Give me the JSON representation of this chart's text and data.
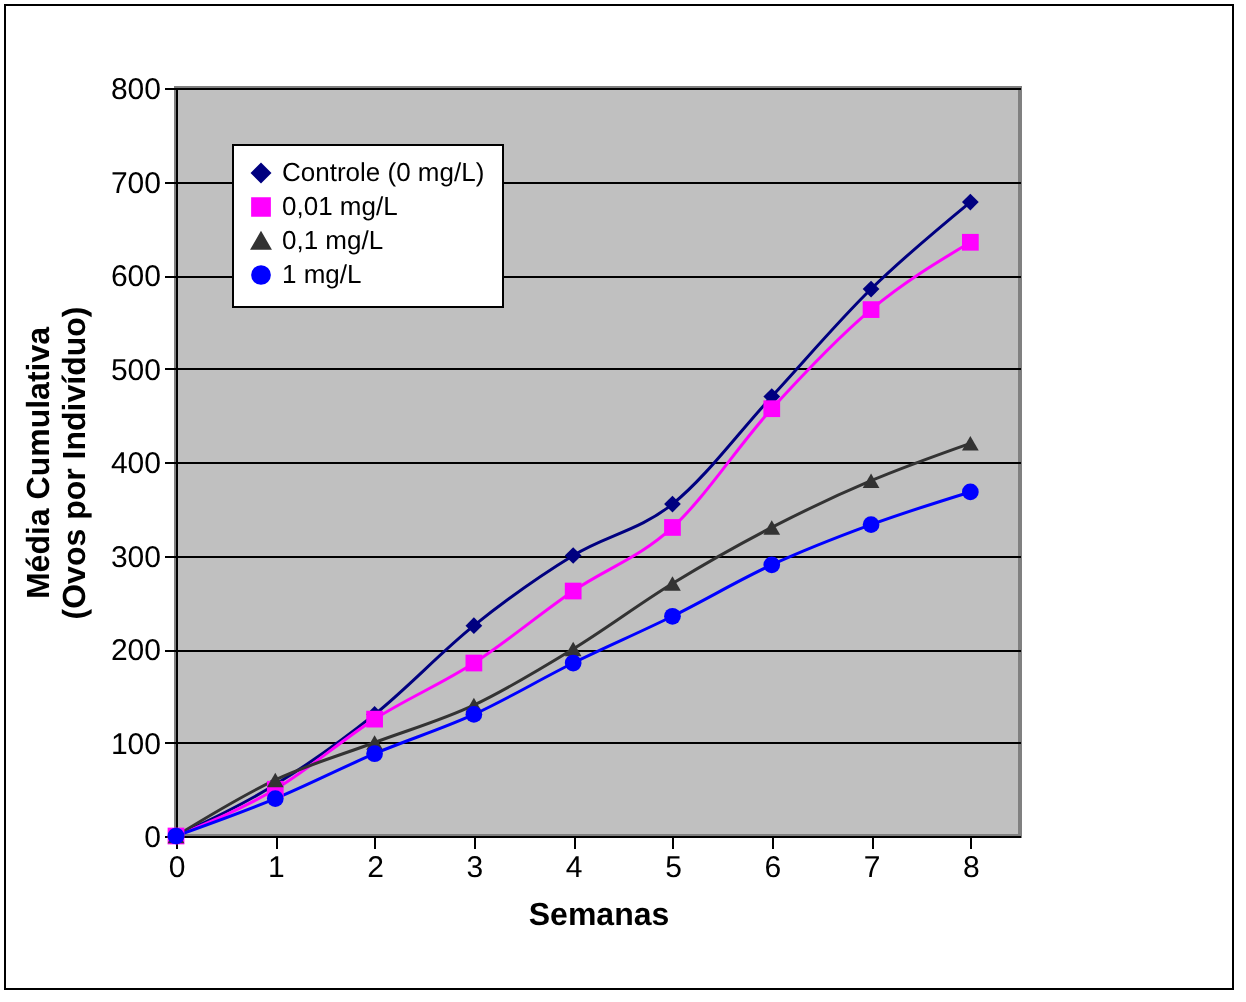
{
  "chart_data": {
    "type": "line",
    "xlabel": "Semanas",
    "ylabel": "Média Cumulativa\n(Ovos por Indivíduo)",
    "x": [
      0,
      1,
      2,
      3,
      4,
      5,
      6,
      7,
      8
    ],
    "xlim": [
      0,
      8.5
    ],
    "xticks": [
      0,
      1,
      2,
      3,
      4,
      5,
      6,
      7,
      8
    ],
    "ylim": [
      0,
      800
    ],
    "yticks": [
      0,
      100,
      200,
      300,
      400,
      500,
      600,
      700,
      800
    ],
    "grid": "y",
    "legend": "top left",
    "series": [
      {
        "name": "Controle (0 mg/L)",
        "color": "#000080",
        "marker": "diamond",
        "values": [
          0,
          55,
          130,
          225,
          300,
          355,
          470,
          585,
          678
        ]
      },
      {
        "name": "0,01 mg/L",
        "color": "#ff00ff",
        "marker": "square",
        "values": [
          0,
          50,
          125,
          185,
          262,
          330,
          457,
          563,
          635
        ]
      },
      {
        "name": "0,1 mg/L",
        "color": "#333333",
        "marker": "triangle",
        "values": [
          0,
          60,
          100,
          140,
          200,
          270,
          330,
          380,
          420
        ]
      },
      {
        "name": "1 mg/L",
        "color": "#0000ff",
        "marker": "circle",
        "values": [
          0,
          40,
          88,
          130,
          185,
          235,
          290,
          333,
          368
        ]
      }
    ]
  }
}
